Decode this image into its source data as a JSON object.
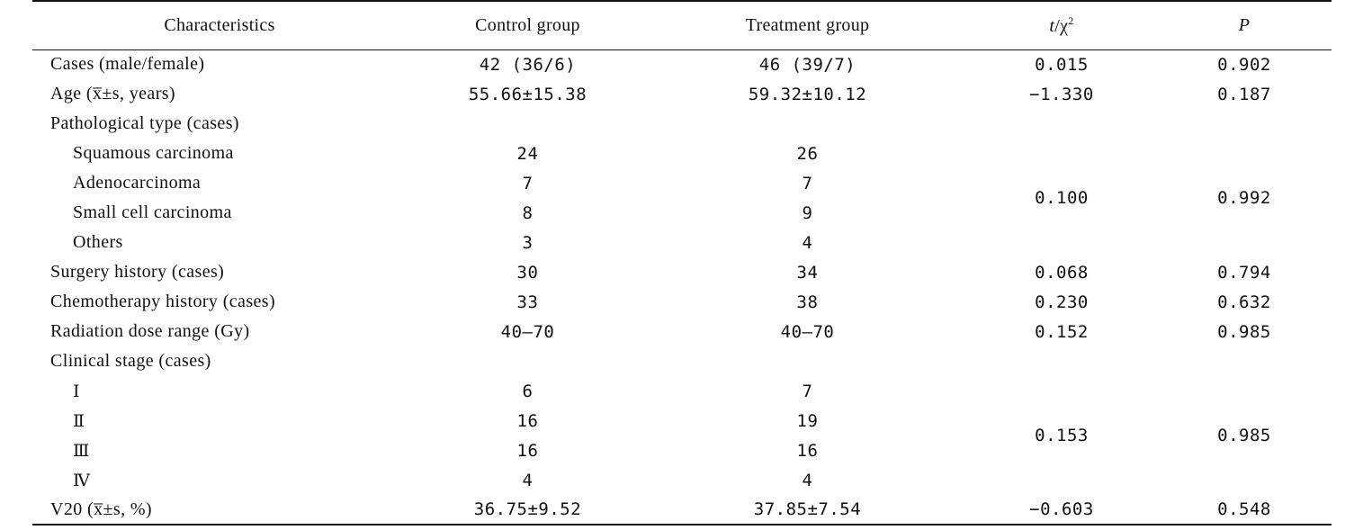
{
  "table": {
    "headers": {
      "characteristics": "Characteristics",
      "control": "Control group",
      "treatment": "Treatment group",
      "stat_t": "t",
      "stat_sep": "/χ",
      "stat_sup": "2",
      "p": "P"
    },
    "rows": {
      "cases": {
        "label": "Cases (male/female)",
        "control": "42 (36/6)",
        "treatment": "46 (39/7)",
        "stat": "0.015",
        "p": "0.902"
      },
      "age": {
        "label": "Age (x̅±s, years)",
        "control": "55.66±15.38",
        "treatment": "59.32±10.12",
        "stat": "−1.330",
        "p": "0.187"
      },
      "pathological_header": {
        "label": "Pathological type (cases)"
      },
      "squamous": {
        "label": "Squamous carcinoma",
        "control": "24",
        "treatment": "26"
      },
      "adeno": {
        "label": "Adenocarcinoma",
        "control": "7",
        "treatment": "7"
      },
      "small_cell": {
        "label": "Small cell carcinoma",
        "control": "8",
        "treatment": "9"
      },
      "others": {
        "label": "Others",
        "control": "3",
        "treatment": "4"
      },
      "pathological_stat": {
        "stat": "0.100",
        "p": "0.992"
      },
      "surgery": {
        "label": "Surgery history (cases)",
        "control": "30",
        "treatment": "34",
        "stat": "0.068",
        "p": "0.794"
      },
      "chemo": {
        "label": "Chemotherapy history (cases)",
        "control": "33",
        "treatment": "38",
        "stat": "0.230",
        "p": "0.632"
      },
      "radiation": {
        "label": "Radiation dose range (Gy)",
        "control": "40—70",
        "treatment": "40—70",
        "stat": "0.152",
        "p": "0.985"
      },
      "stage_header": {
        "label": "Clinical stage (cases)"
      },
      "stage_1": {
        "label": "Ⅰ",
        "control": "6",
        "treatment": "7"
      },
      "stage_2": {
        "label": "Ⅱ",
        "control": "16",
        "treatment": "19"
      },
      "stage_3": {
        "label": "Ⅲ",
        "control": "16",
        "treatment": "16"
      },
      "stage_4": {
        "label": "Ⅳ",
        "control": "4",
        "treatment": "4"
      },
      "stage_stat": {
        "stat": "0.153",
        "p": "0.985"
      },
      "v20": {
        "label": "V20 (x̅±s, %)",
        "control": "36.75±9.52",
        "treatment": "37.85±7.54",
        "stat": "−0.603",
        "p": "0.548"
      }
    }
  }
}
